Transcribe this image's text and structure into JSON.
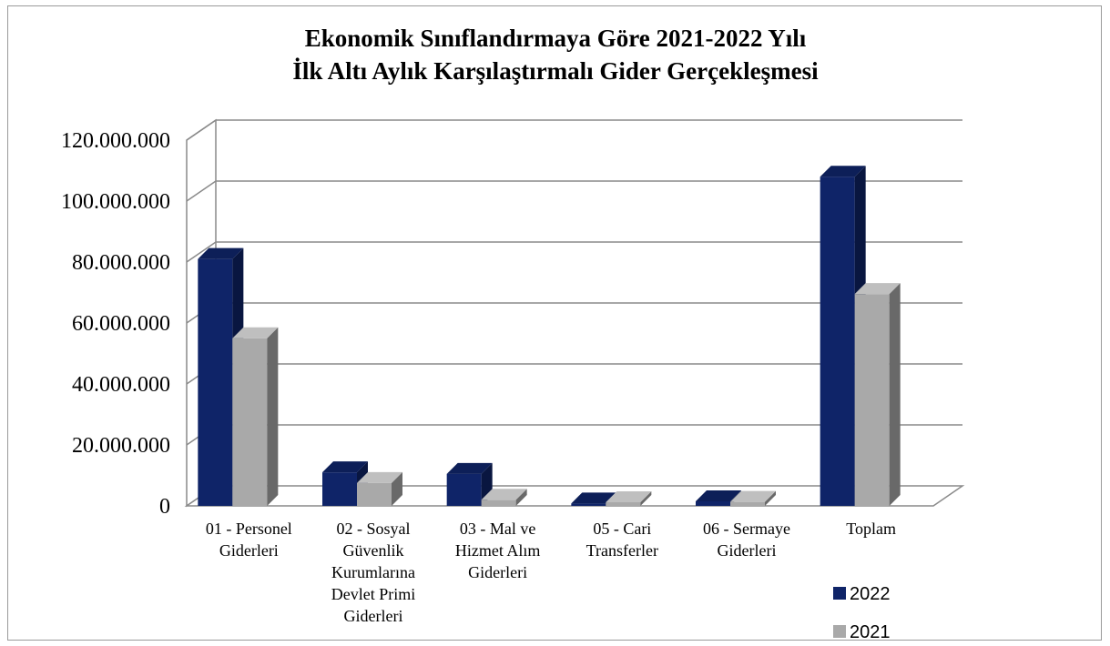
{
  "chart_data": {
    "type": "bar",
    "title_lines": [
      "Ekonomik Sınıflandırmaya Göre 2021-2022 Yılı",
      "İlk Altı Aylık Karşılaştırmalı Gider Gerçekleşmesi"
    ],
    "categories": [
      [
        "01 - Personel",
        "Giderleri"
      ],
      [
        "02 - Sosyal",
        "Güvenlik",
        "Kurumlarına",
        "Devlet Primi",
        "Giderleri"
      ],
      [
        "03 - Mal ve",
        "Hizmet Alım",
        "Giderleri"
      ],
      [
        "05 - Cari",
        "Transferler"
      ],
      [
        "06 - Sermaye",
        "Giderleri"
      ],
      [
        "Toplam"
      ]
    ],
    "series": [
      {
        "name": "2022",
        "color": "#0f2468",
        "values": [
          81000000,
          11000000,
          10500000,
          800000,
          1500000,
          108000000
        ]
      },
      {
        "name": "2021",
        "color": "#a9a9a9",
        "values": [
          55000000,
          7500000,
          2000000,
          1200000,
          1300000,
          69500000
        ]
      }
    ],
    "y_ticks": [
      "0",
      "20.000.000",
      "40.000.000",
      "60.000.000",
      "80.000.000",
      "100.000.000",
      "120.000.000"
    ],
    "ylim": [
      0,
      120000000
    ],
    "grid": true,
    "legend_position": "bottom-right"
  }
}
